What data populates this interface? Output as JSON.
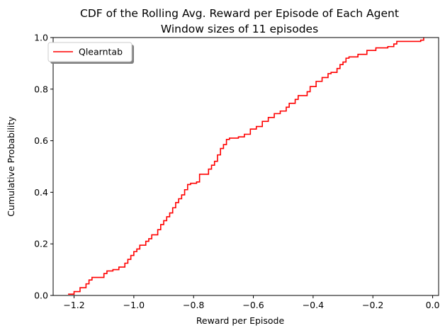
{
  "chart_data": {
    "type": "line",
    "title": "CDF of the Rolling Avg. Reward per Episode of Each Agent",
    "subtitle": "Window sizes of 11 episodes",
    "xlabel": "Reward per Episode",
    "ylabel": "Cumulative Probability",
    "xlim": [
      -1.27,
      0.02
    ],
    "ylim": [
      0.0,
      1.0
    ],
    "x_ticks": [
      -1.2,
      -1.0,
      -0.8,
      -0.6,
      -0.4,
      -0.2,
      0.0
    ],
    "x_tick_labels": [
      "−1.2",
      "−1.0",
      "−0.8",
      "−0.6",
      "−0.4",
      "−0.2",
      "0.0"
    ],
    "y_ticks": [
      0.0,
      0.2,
      0.4,
      0.6,
      0.8,
      1.0
    ],
    "y_tick_labels": [
      "0.0",
      "0.2",
      "0.4",
      "0.6",
      "0.8",
      "1.0"
    ],
    "grid": false,
    "legend": {
      "position": "top-left",
      "shadow": true
    },
    "series": [
      {
        "name": "Qlearntab",
        "color": "#ff0000",
        "step": true,
        "x": [
          -1.22,
          -1.2,
          -1.18,
          -1.16,
          -1.15,
          -1.14,
          -1.1,
          -1.09,
          -1.07,
          -1.05,
          -1.03,
          -1.02,
          -1.01,
          -1.0,
          -0.99,
          -0.98,
          -0.96,
          -0.95,
          -0.94,
          -0.92,
          -0.91,
          -0.9,
          -0.89,
          -0.88,
          -0.87,
          -0.86,
          -0.85,
          -0.84,
          -0.83,
          -0.82,
          -0.81,
          -0.8,
          -0.79,
          -0.78,
          -0.75,
          -0.74,
          -0.73,
          -0.72,
          -0.71,
          -0.7,
          -0.69,
          -0.68,
          -0.65,
          -0.63,
          -0.61,
          -0.59,
          -0.58,
          -0.57,
          -0.55,
          -0.53,
          -0.51,
          -0.49,
          -0.48,
          -0.46,
          -0.45,
          -0.43,
          -0.42,
          -0.41,
          -0.39,
          -0.37,
          -0.35,
          -0.34,
          -0.32,
          -0.31,
          -0.3,
          -0.29,
          -0.28,
          -0.25,
          -0.22,
          -0.19,
          -0.17,
          -0.15,
          -0.13,
          -0.12,
          -0.05,
          -0.04,
          -0.03
        ],
        "y": [
          0.005,
          0.015,
          0.03,
          0.045,
          0.06,
          0.07,
          0.085,
          0.095,
          0.1,
          0.11,
          0.125,
          0.14,
          0.155,
          0.17,
          0.18,
          0.195,
          0.21,
          0.22,
          0.235,
          0.255,
          0.275,
          0.29,
          0.305,
          0.32,
          0.34,
          0.36,
          0.375,
          0.39,
          0.41,
          0.43,
          0.435,
          0.435,
          0.44,
          0.47,
          0.49,
          0.505,
          0.52,
          0.545,
          0.57,
          0.585,
          0.605,
          0.61,
          0.615,
          0.625,
          0.645,
          0.655,
          0.655,
          0.675,
          0.69,
          0.705,
          0.715,
          0.73,
          0.745,
          0.76,
          0.775,
          0.775,
          0.79,
          0.81,
          0.83,
          0.845,
          0.86,
          0.865,
          0.88,
          0.895,
          0.905,
          0.92,
          0.925,
          0.935,
          0.95,
          0.96,
          0.96,
          0.965,
          0.975,
          0.985,
          0.985,
          0.99,
          1.0
        ]
      }
    ]
  }
}
